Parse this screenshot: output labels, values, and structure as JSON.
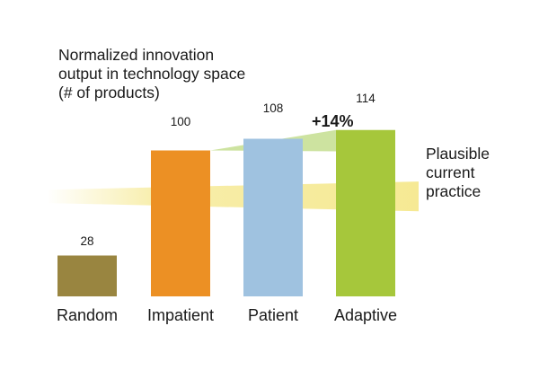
{
  "chart_data": {
    "type": "bar",
    "title_lines": [
      "Normalized innovation",
      "output in technology space",
      "(# of products)"
    ],
    "categories": [
      "Random",
      "Impatient",
      "Patient",
      "Adaptive"
    ],
    "values": [
      28,
      100,
      108,
      114
    ],
    "value_labels": [
      "28",
      "100",
      "108",
      "114"
    ],
    "colors": [
      "#998540",
      "#ec9024",
      "#9fc2e0",
      "#a6c73b"
    ],
    "ylim": [
      0,
      120
    ],
    "band": {
      "label_lines": [
        "Plausible",
        "current",
        "practice"
      ],
      "color": "#f5e88e",
      "low": 62,
      "high": 75
    },
    "annotation": "+14%",
    "annotation_color": "#cde3a0"
  }
}
